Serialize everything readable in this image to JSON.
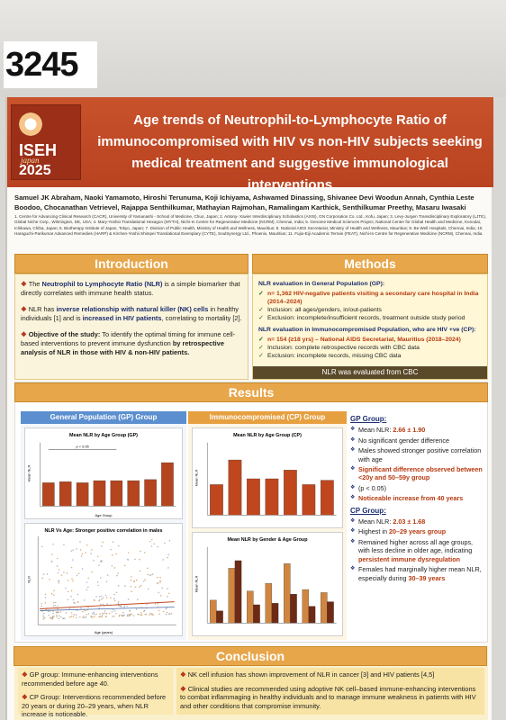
{
  "poster_number": "3245",
  "logo": {
    "line1": "ISEH",
    "line2": "japan",
    "line3": "2025"
  },
  "title": "Age trends of Neutrophil-to-Lymphocyte Ratio of immunocompromised with HIV vs non-HIV subjects seeking medical treatment and suggestive immunological interventions",
  "authors": "Samuel JK Abraham, Naoki Yamamoto, Hiroshi Terunuma, Koji Ichiyama, Ashwamed Dinassing, Shivanee Devi Woodun Annah, Cynthia Leste Boodoo, Chocanathan Vetrievel, Rajappa Senthilkumar, Mathayian Rajmohan, Ramalingam Karthick, Senthilkumar Preethy, Masaru Iwasaki",
  "affiliations": "1. Centre for Advancing Clinical Research (CACR), University of Yamanashi - School of Medicine, Chuo, Japan; 2. Antony- Xavier Interdisciplinary Scholastics (AXIS), GN Corporation Co. Ltd., Kofu, Japan; 3. Levy-Jurgen Transdisciplinary Exploratory (LJTE), Global Niche Corp., Wilmington, DE, USA; 4. Mary-Yoshio Translational Hexagon (MYTH), Nichi-In Centre for Regenerative Medicine (NCRM), Chennai, India; 5. Genome Medical Sciences Project, National Center for Global Health and Medicine, Konodai, Ichikawa, Chiba, Japan; 6. Biotherapy Institute of Japan, Tokyo, Japan; 7. Division of Public Health, Ministry of Health and Wellness, Mauritius; 8. National AIDS Secretariat, Ministry of Health and Wellness, Mauritius; 9. Be Well Hospitals, Chennai, India; 10. Haraguchi-Parikumar Advanced Remedies (HARP) & Kirchen-Yoshii Shimpei Translational Exemplary (CYTE), SoulSynergy Ltd., Phoenix, Mauritius; 11. Fujio-Eiji Academic Terrain (FEAT), Nichi-In Centre for Regenerative Medicine (NCRM), Chennai, India",
  "introduction": {
    "heading": "Introduction",
    "p1a": "The ",
    "p1b": "Neutrophil to Lymphocyte Ratio (NLR)",
    "p1c": " is a simple biomarker that directly correlates with immune health status.",
    "p2a": "NLR has ",
    "p2b": "inverse relationship with natural killer (NK) cells",
    "p2c": " in healthy individuals [1] and is ",
    "p2d": "increased in HIV patients",
    "p2e": ", correlating to mortality [2].",
    "p3a": "Objective of the study:",
    "p3b": " To identify the optimal timing for immune cell-based interventions to prevent immune dysfunction ",
    "p3c": "by retrospective analysis of NLR in those with HIV & non-HIV patients."
  },
  "methods": {
    "heading": "Methods",
    "gp_head": "NLR evaluation in General Population (GP):",
    "gp_items": [
      "n= 1,362 HIV-negative patients visiting a secondary care hospital in India (2014–2024)",
      "Inclusion: all ages/genders, in/out-patients",
      "Exclusion: incomplete/insufficient records, treatment outside study period"
    ],
    "cp_head": "NLR evaluation in Immunocompromised Population, who are HIV +ve (CP):",
    "cp_items": [
      "n= 154 (≥18 yrs) – National AIDS Secretariat, Mauritius (2018–2024)",
      "Inclusion: complete retrospective records with CBC data",
      "Exclusion: incomplete records, missing CBC data"
    ],
    "footer": "NLR was evaluated from CBC"
  },
  "results": {
    "heading": "Results",
    "gp_head": "General Population (GP) Group",
    "cp_head": "Immunocompromised (CP) Group",
    "gp_findings_head": "GP Group:",
    "gp_findings": [
      {
        "t": "Mean NLR: ",
        "h": "2.66 ± 1.90"
      },
      {
        "t": "No significant gender difference",
        "h": ""
      },
      {
        "t": "Males showed stronger positive correlation with age",
        "h": ""
      },
      {
        "t": "",
        "h": "Significant difference observed between <20y and 50–59y group"
      },
      {
        "t": "(p < 0.05)",
        "h": ""
      },
      {
        "t": "",
        "h": "Noticeable increase from 40 years"
      }
    ],
    "cp_findings_head": "CP Group:",
    "cp_findings": [
      {
        "t": "Mean NLR: ",
        "h": "2.03 ± 1.68"
      },
      {
        "t": "Highest in ",
        "h": "20–29 years group"
      },
      {
        "t": "Remained higher across all age groups, with less decline in older age, indicating ",
        "h": "persistent immune dysregulation"
      },
      {
        "t": "Females had marginally higher mean NLR, especially during ",
        "h": "30–39 years"
      }
    ]
  },
  "chart_data": [
    {
      "type": "bar",
      "title": "Mean NLR by Age Group (GP)",
      "ylabel": "Mean NLR",
      "xlabel": "Age Group",
      "annotation": "p < 0.05",
      "values": [
        2.2,
        2.3,
        2.2,
        2.4,
        2.4,
        2.4,
        2.5,
        4.1
      ],
      "ylim": [
        0,
        6
      ]
    },
    {
      "type": "scatter",
      "title": "NLR Vs Age: Stronger positive correlation in males",
      "xlabel": "Age (years)",
      "ylabel": "NLR"
    },
    {
      "type": "bar",
      "title": "Mean NLR by Age Group (CP)",
      "ylabel": "Mean NLR",
      "values": [
        2.1,
        3.8,
        2.5,
        2.5,
        3.1,
        2.1,
        2.4
      ],
      "ylim": [
        0,
        5
      ]
    },
    {
      "type": "bar",
      "title": "Mean NLR by Gender & Age Group",
      "ylabel": "Mean NLR",
      "series": [
        {
          "values": [
            1.5,
            3.6,
            2.1,
            2.6,
            3.9,
            2.2,
            2.0
          ]
        },
        {
          "values": [
            0.8,
            4.1,
            1.2,
            1.3,
            1.9,
            1.1,
            1.4
          ]
        }
      ],
      "ylim": [
        0,
        5
      ]
    }
  ],
  "conclusion": {
    "heading": "Conclusion",
    "left": [
      "GP group: Immune-enhancing interventions recommended before age 40.",
      "CP Group: Interventions recommended before 20 years or during 20–29 years, when NLR increase is noticeable."
    ],
    "right": [
      "NK cell infusion has shown improvement of NLR in cancer [3] and HIV patients [4,5]",
      "Clinical studies are recommended using adoptive NK cell–based immune-enhancing interventions to combat inflammaging in healthy individuals and to manage immune weakness in patients with HIV and other conditions that compromise immunity."
    ]
  },
  "colors": {
    "banner": "#c34a24",
    "section": "#e7a64a",
    "gp": "#5c8fcf",
    "cp": "#e6a040",
    "bar_gp": "#b5451e",
    "bar_cp": "#c0461d"
  }
}
